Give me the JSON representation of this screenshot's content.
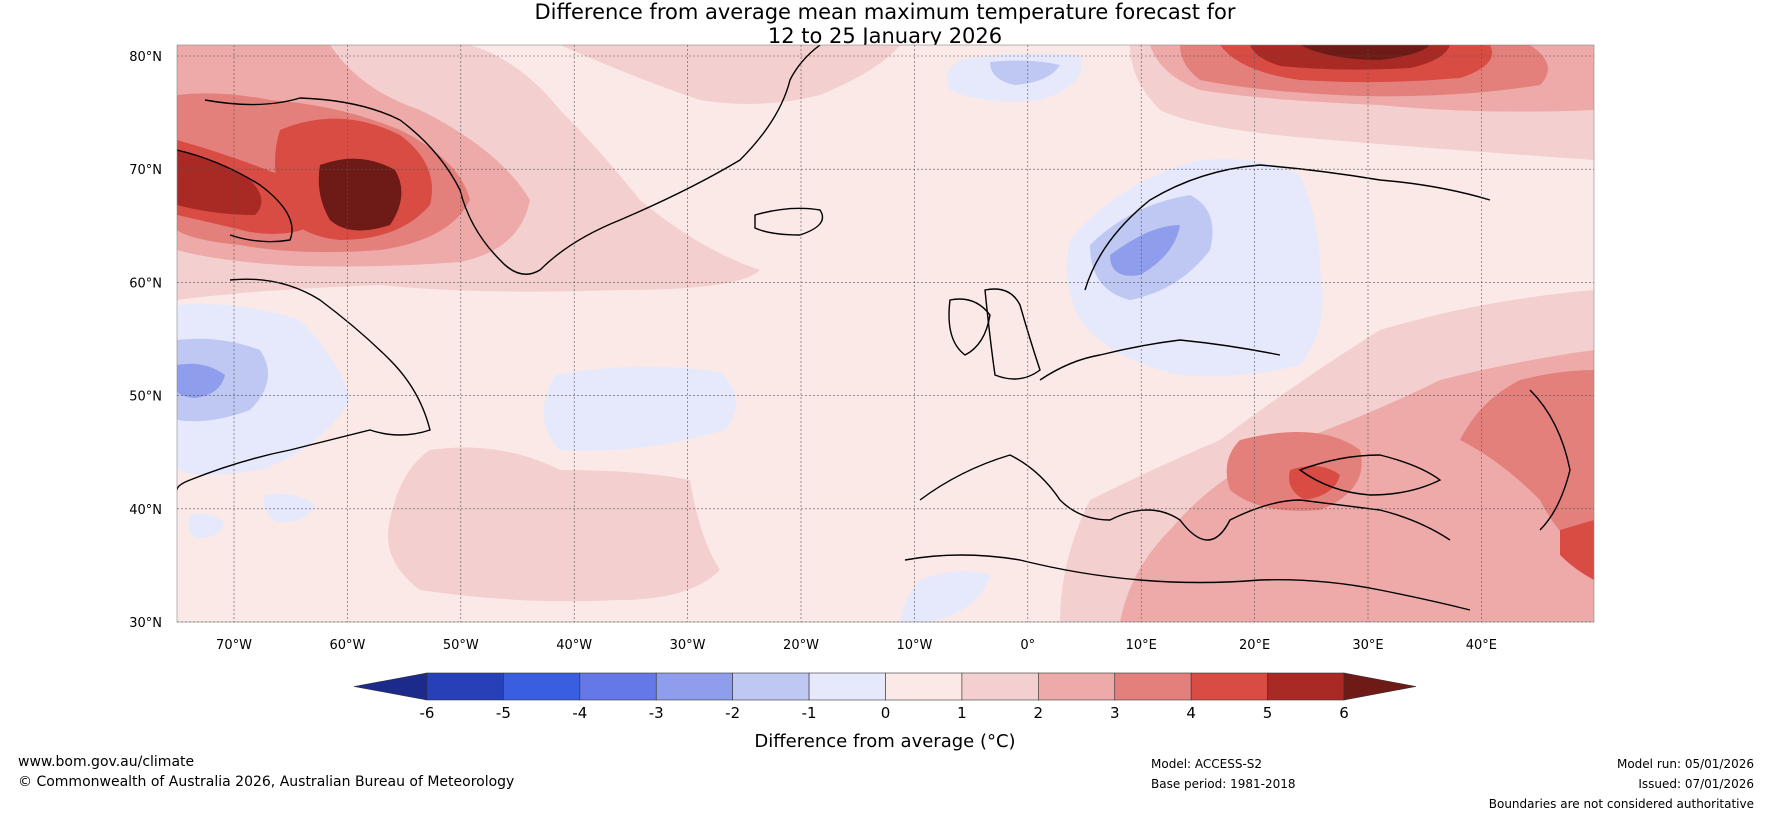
{
  "title": {
    "line1": "Difference from average mean maximum temperature forecast for",
    "line2": "12 to 25 January 2026"
  },
  "map": {
    "lat_labels": [
      "80°N",
      "70°N",
      "60°N",
      "50°N",
      "40°N",
      "30°N"
    ],
    "lon_labels": [
      "70°W",
      "60°W",
      "50°W",
      "40°W",
      "30°W",
      "20°W",
      "10°W",
      "0°",
      "10°E",
      "20°E",
      "30°E",
      "40°E"
    ]
  },
  "colorbar": {
    "label": "Difference from average (°C)",
    "ticks": [
      "-6",
      "-5",
      "-4",
      "-3",
      "-2",
      "-1",
      "0",
      "1",
      "2",
      "3",
      "4",
      "5",
      "6"
    ],
    "colors": [
      "#1c2a8c",
      "#2640b8",
      "#3a5ee0",
      "#6478e6",
      "#8f9eec",
      "#bfc7f3",
      "#e6e9fb",
      "#fbe9e8",
      "#f4cfcf",
      "#edaaa8",
      "#e3807b",
      "#d94c44",
      "#a92925",
      "#6e1a17"
    ]
  },
  "footer": {
    "website": "www.bom.gov.au/climate",
    "copyright": "© Commonwealth of Australia 2026, Australian Bureau of Meteorology",
    "model": "Model: ACCESS-S2",
    "base_period": "Base period: 1981-2018",
    "model_run": "Model run: 05/01/2026",
    "issued": "Issued: 07/01/2026",
    "disclaimer": "Boundaries are not considered authoritative"
  }
}
